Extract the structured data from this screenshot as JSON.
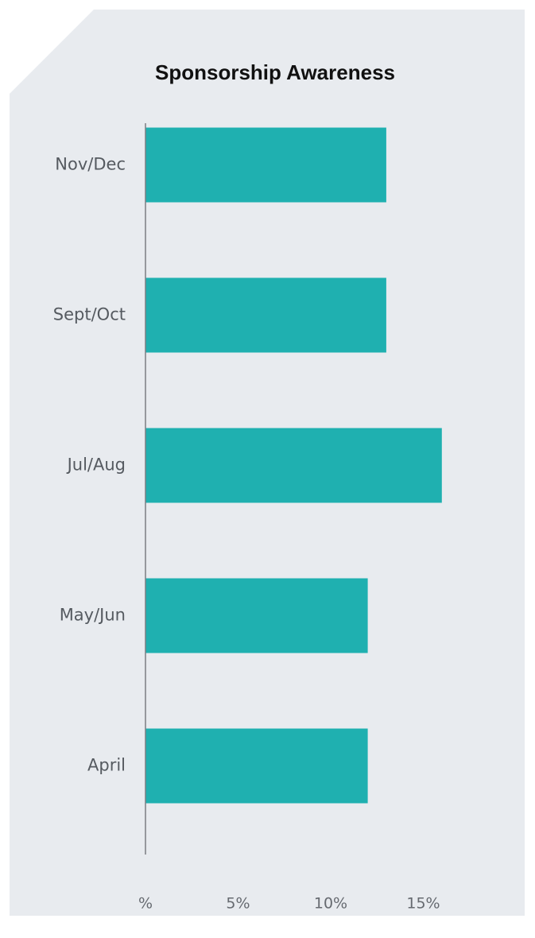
{
  "chart_data": {
    "type": "barh",
    "title": "Sponsorship Awareness",
    "categories": [
      "Nov/Dec",
      "Sept/Oct",
      "Jul/Aug",
      "May/Jun",
      "April"
    ],
    "values": [
      13,
      13,
      16,
      12,
      12
    ],
    "color": "#1fb0b0",
    "xlim": [
      0,
      20
    ],
    "xticks": [
      {
        "value": 0,
        "label": "%"
      },
      {
        "value": 5,
        "label": "5%"
      },
      {
        "value": 10,
        "label": "10%"
      },
      {
        "value": 15,
        "label": "15%"
      }
    ],
    "grid": false
  }
}
